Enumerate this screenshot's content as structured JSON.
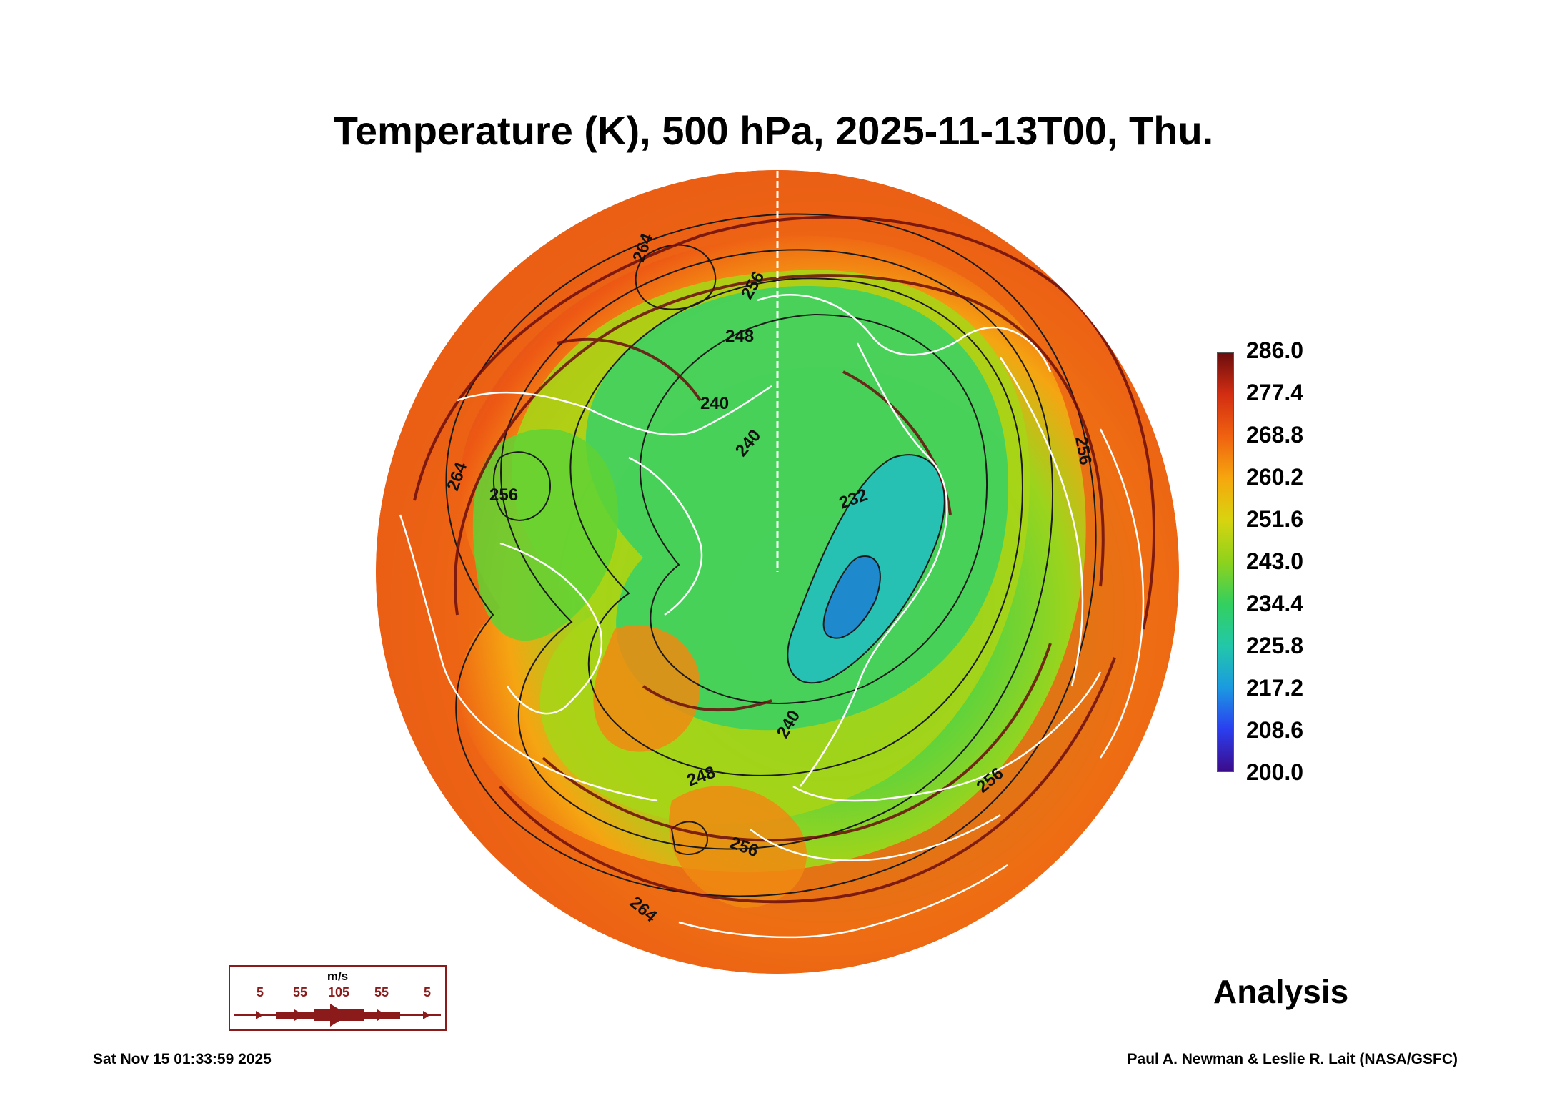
{
  "title": "Temperature (K), 500 hPa, 2025-11-13T00, Thu.",
  "colorbar": {
    "ticks": [
      "286.0",
      "277.4",
      "268.8",
      "260.2",
      "251.6",
      "243.0",
      "234.4",
      "225.8",
      "217.2",
      "208.6",
      "200.0"
    ],
    "range": [
      200.0,
      286.0
    ],
    "colors": [
      "#3b0c8c",
      "#2a3ff0",
      "#1b9be0",
      "#22c8a8",
      "#33d05e",
      "#8ed21c",
      "#d8d40f",
      "#f6a70e",
      "#f06210",
      "#d42e12",
      "#6b0d0d"
    ]
  },
  "map": {
    "projection": "north-polar-stereographic",
    "contour_labels": [
      "264",
      "256",
      "248",
      "240",
      "240",
      "232",
      "240",
      "248",
      "256",
      "264",
      "256",
      "264",
      "256",
      "256"
    ],
    "colors": {
      "warm": "#ee5a14",
      "mid": "#f5a512",
      "cool": "#3fd24c",
      "cold": "#27c3b6",
      "coldest": "#1f86d0",
      "coastline": "#ffffff",
      "contour": "#1a1a1a",
      "streamline": "#6b0d0d"
    }
  },
  "analysis_label": "Analysis",
  "wind_legend": {
    "unit": "m/s",
    "speeds": [
      "5",
      "55",
      "105",
      "55",
      "5"
    ]
  },
  "footer": {
    "timestamp": "Sat Nov 15 01:33:59 2025",
    "credit": "Paul A. Newman & Leslie R. Lait (NASA/GSFC)"
  }
}
